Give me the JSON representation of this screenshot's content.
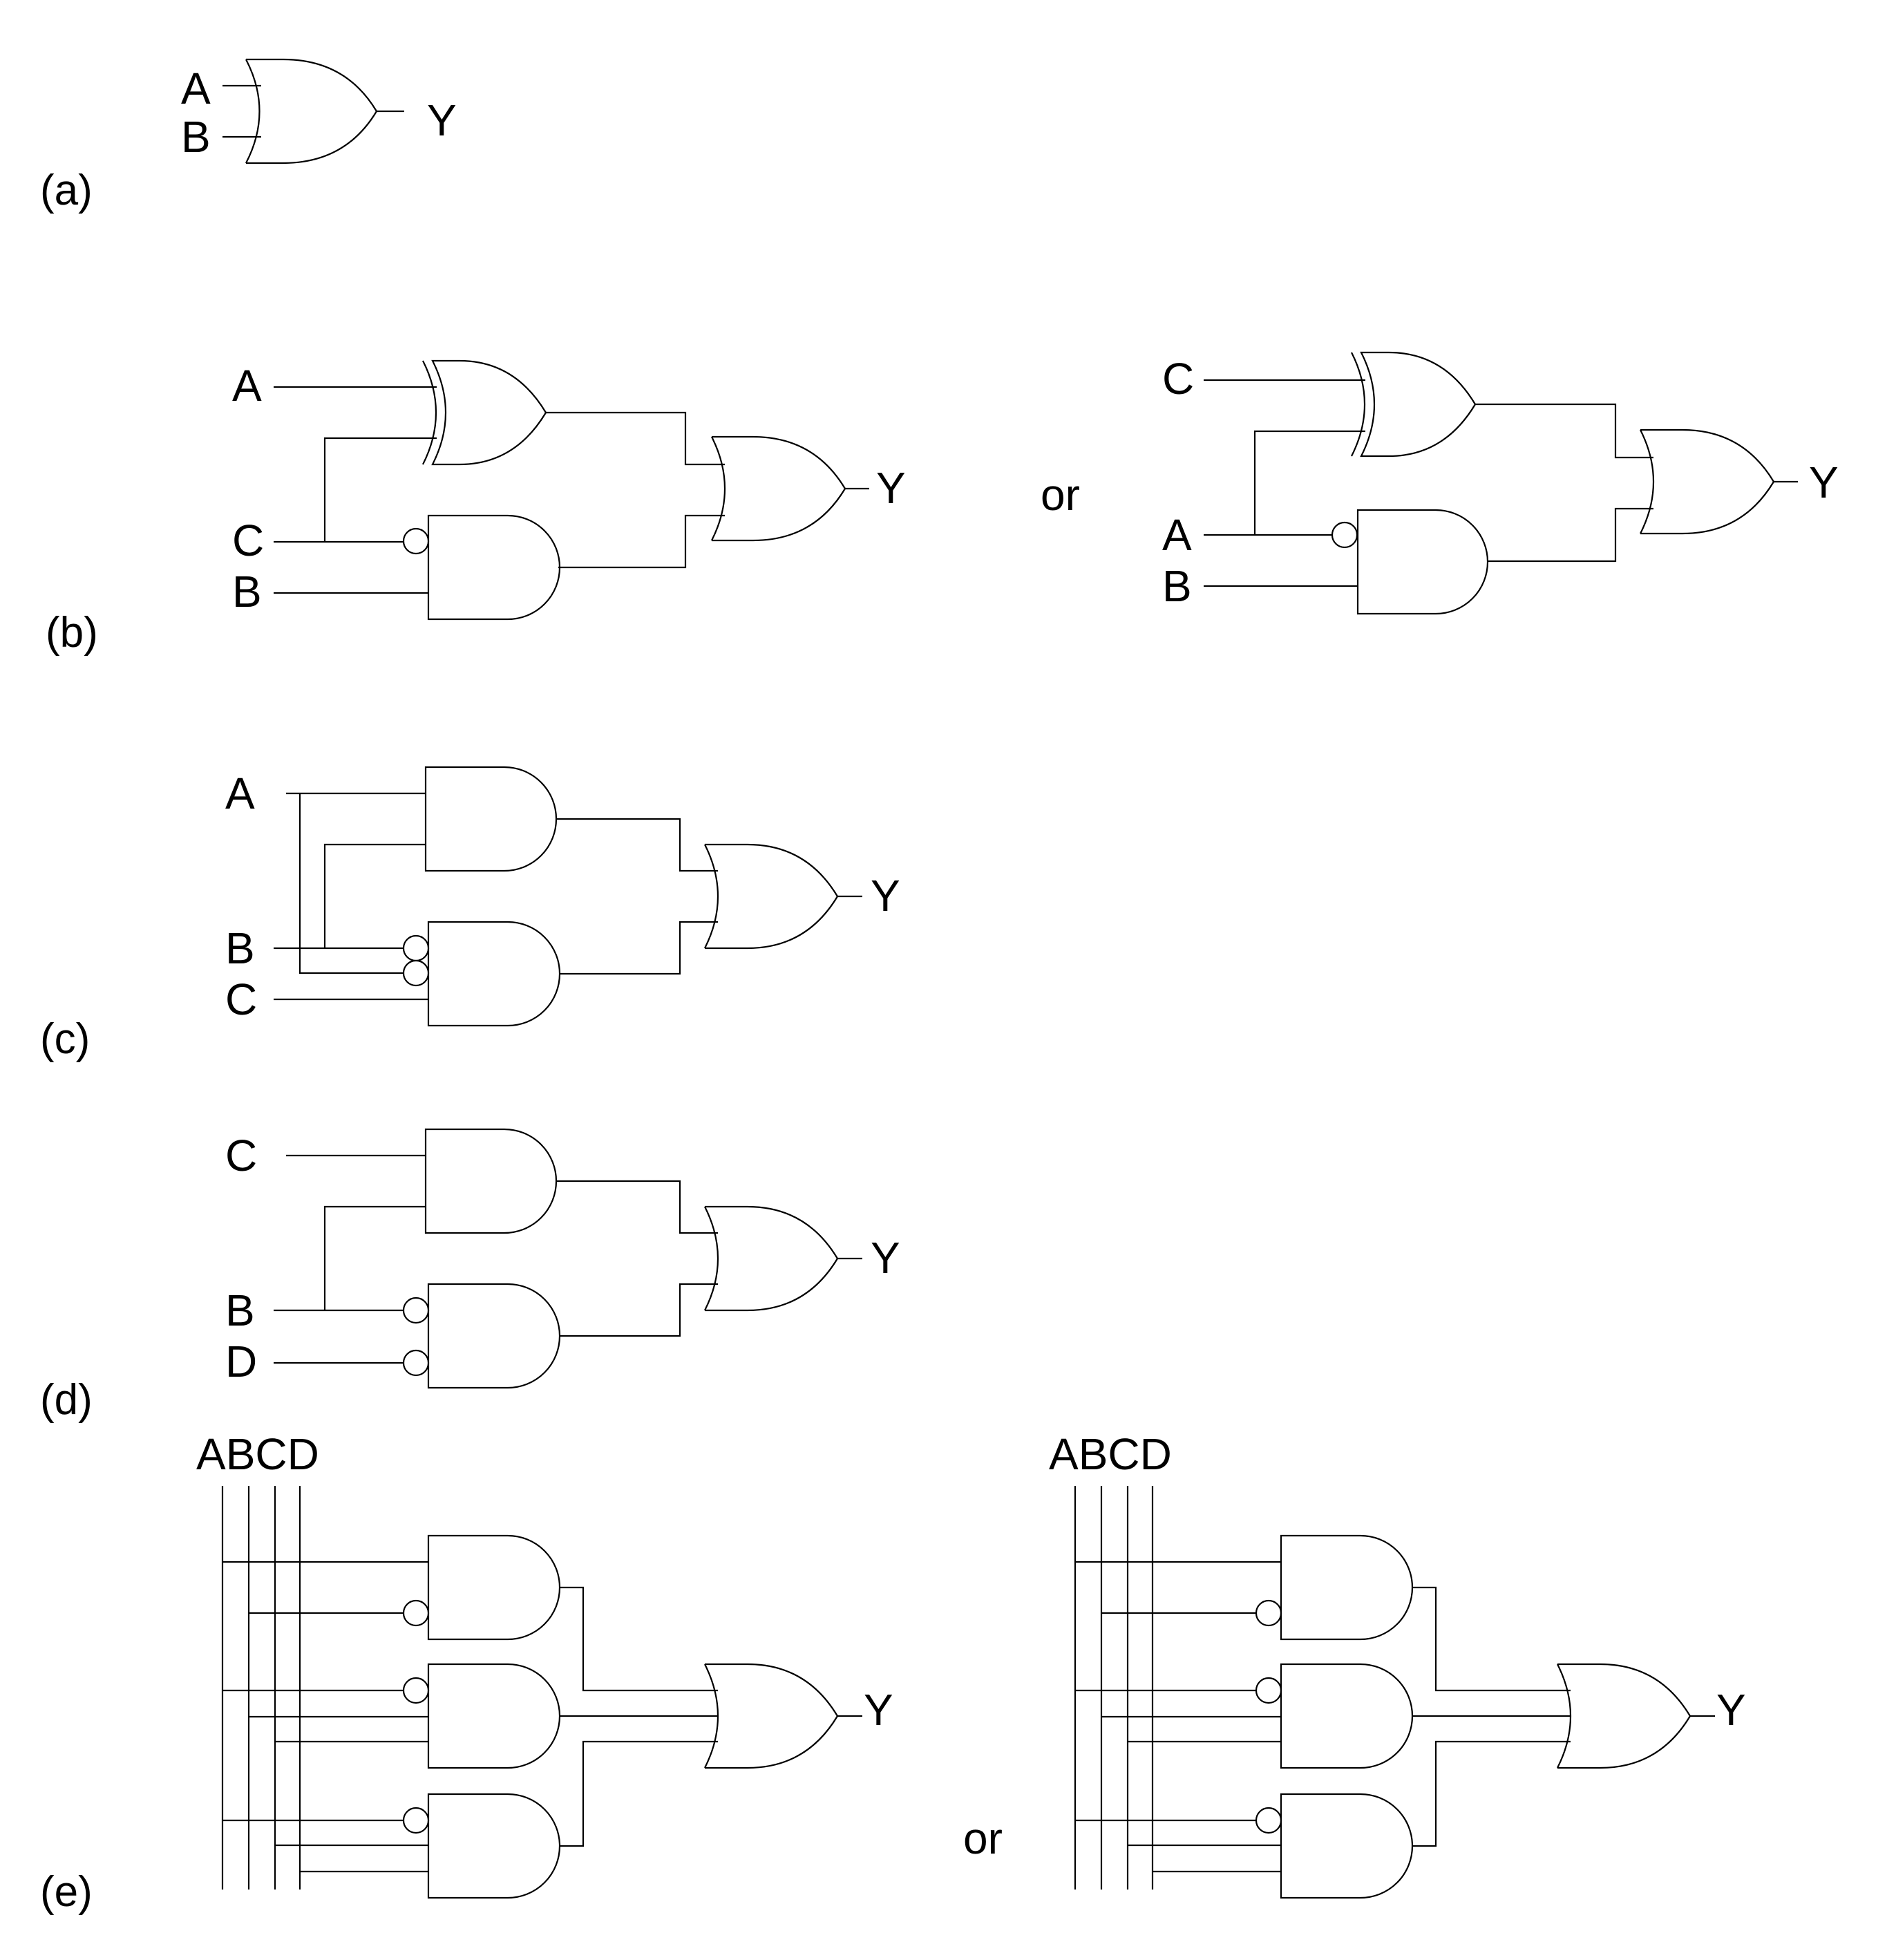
{
  "sections": {
    "a": "(a)",
    "b": "(b)",
    "c": "(c)",
    "d": "(d)",
    "e": "(e)"
  },
  "a": {
    "in1": "A",
    "in2": "B",
    "out": "Y"
  },
  "b": {
    "left": {
      "in1": "A",
      "in2": "C",
      "in3": "B",
      "out": "Y"
    },
    "or": "or",
    "right": {
      "in1": "C",
      "in2": "A",
      "in3": "B",
      "out": "Y"
    }
  },
  "c": {
    "in1": "A",
    "in2": "B",
    "in3": "C",
    "out": "Y"
  },
  "d": {
    "in1": "C",
    "in2": "B",
    "in3": "D",
    "out": "Y"
  },
  "e": {
    "left": {
      "bus": "ABCD",
      "out": "Y"
    },
    "or": "or",
    "right": {
      "bus": "ABCD",
      "out": "Y"
    }
  },
  "line_color": "#000000",
  "background": "#ffffff"
}
